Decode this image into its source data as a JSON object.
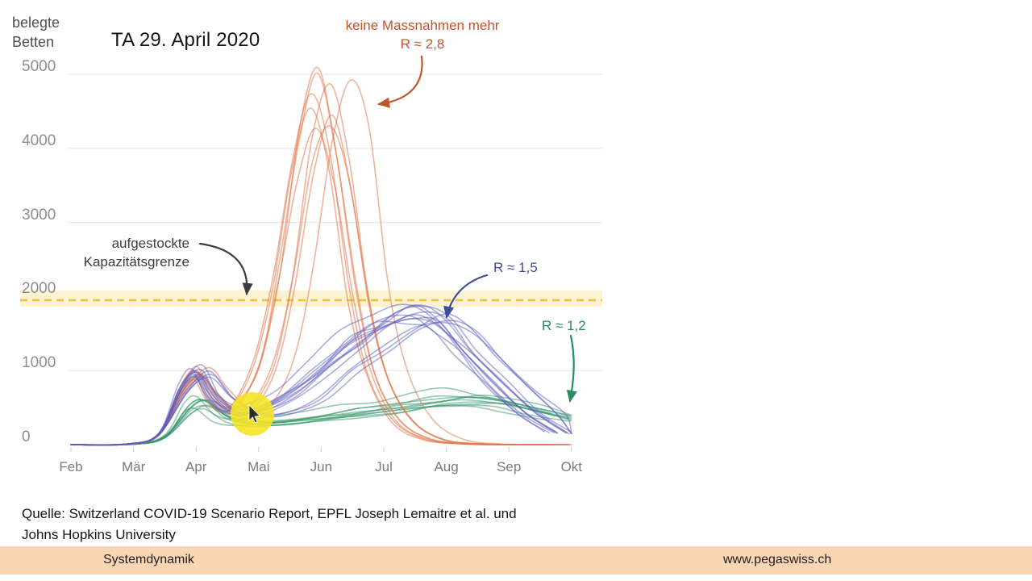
{
  "title": "TA 29. April 2020",
  "y_axis_title": {
    "line1": "belegte",
    "line2": "Betten"
  },
  "annotations": {
    "no_measures": {
      "line1": "keine Massnahmen mehr",
      "line2": "R ≈ 2,8",
      "color": "#c2552d"
    },
    "capacity": {
      "line1": "aufgestockte",
      "line2": "Kapazitätsgrenze",
      "color": "#3c3c3c"
    },
    "r_15": {
      "label": "R ≈ 1,5",
      "color": "#3e4d9f"
    },
    "r_12": {
      "label": "R ≈ 1,2",
      "color": "#2b8a61"
    }
  },
  "source": {
    "line1": "Quelle: Switzerland COVID-19 Scenario Report, EPFL Joseph Lemaitre et al. und",
    "line2": "Johns Hopkins University"
  },
  "footer": {
    "left_label": "Systemdynamik",
    "right_label": "www.pegaswiss.ch",
    "background": "#fbd6b4"
  },
  "chart_data": {
    "type": "line",
    "title": "TA 29. April 2020",
    "ylabel": "belegte Betten",
    "x_unit": "month_index (0 = Feb)",
    "y_unit": "belegte Betten",
    "x_tick_labels": [
      "Feb",
      "Mär",
      "Apr",
      "Mai",
      "Jun",
      "Jul",
      "Aug",
      "Sep",
      "Okt"
    ],
    "y_ticks": [
      0,
      1000,
      2000,
      3000,
      4000,
      5000
    ],
    "ylim": [
      0,
      5100
    ],
    "grid": true,
    "legend_position": "annotations-inline",
    "capacity_limit": {
      "label": "aufgestockte Kapazitätsgrenze",
      "value": 1950,
      "band": [
        1860,
        2080
      ],
      "line_color": "#efc13c",
      "band_color": "#fdf3d2"
    },
    "series_groups": [
      {
        "name": "R ≈ 1,2",
        "color": "#2f9468",
        "runs": 10,
        "opacity": 0.5,
        "amp_jitter": 0.17,
        "time_jitter": 0.4,
        "base_curve": [
          [
            0,
            0
          ],
          [
            1.0,
            6
          ],
          [
            1.5,
            110
          ],
          [
            1.9,
            510
          ],
          [
            2.15,
            590
          ],
          [
            2.5,
            380
          ],
          [
            2.9,
            300
          ],
          [
            3.4,
            320
          ],
          [
            4.0,
            380
          ],
          [
            4.6,
            450
          ],
          [
            5.2,
            520
          ],
          [
            5.8,
            600
          ],
          [
            6.3,
            640
          ],
          [
            6.8,
            600
          ],
          [
            7.3,
            500
          ],
          [
            8,
            380
          ]
        ]
      },
      {
        "name": "keine Massnahmen mehr (R ≈ 2,8)",
        "color": "#e1764a",
        "runs": 9,
        "opacity": 0.55,
        "amp_jitter": 0.07,
        "time_jitter": 0.38,
        "base_curve": [
          [
            0,
            0
          ],
          [
            0.9,
            5
          ],
          [
            1.4,
            130
          ],
          [
            1.8,
            720
          ],
          [
            2.1,
            950
          ],
          [
            2.35,
            690
          ],
          [
            2.65,
            480
          ],
          [
            2.95,
            540
          ],
          [
            3.3,
            1100
          ],
          [
            3.6,
            2300
          ],
          [
            3.9,
            3850
          ],
          [
            4.2,
            4600
          ],
          [
            4.5,
            3800
          ],
          [
            4.8,
            2000
          ],
          [
            5.1,
            950
          ],
          [
            5.5,
            330
          ],
          [
            6.0,
            70
          ],
          [
            6.6,
            10
          ],
          [
            7.2,
            0
          ],
          [
            8,
            0
          ]
        ]
      },
      {
        "name": "R ≈ 1,5",
        "color": "#5c5cbe",
        "runs": 13,
        "opacity": 0.5,
        "amp_jitter": 0.1,
        "time_jitter": 0.45,
        "base_curve": [
          [
            0,
            0
          ],
          [
            0.9,
            8
          ],
          [
            1.4,
            140
          ],
          [
            1.8,
            750
          ],
          [
            2.1,
            980
          ],
          [
            2.4,
            640
          ],
          [
            2.8,
            430
          ],
          [
            3.2,
            470
          ],
          [
            3.7,
            680
          ],
          [
            4.2,
            1020
          ],
          [
            4.7,
            1380
          ],
          [
            5.2,
            1650
          ],
          [
            5.7,
            1780
          ],
          [
            6.1,
            1620
          ],
          [
            6.5,
            1260
          ],
          [
            7.0,
            820
          ],
          [
            7.5,
            430
          ],
          [
            8,
            160
          ]
        ]
      }
    ]
  }
}
